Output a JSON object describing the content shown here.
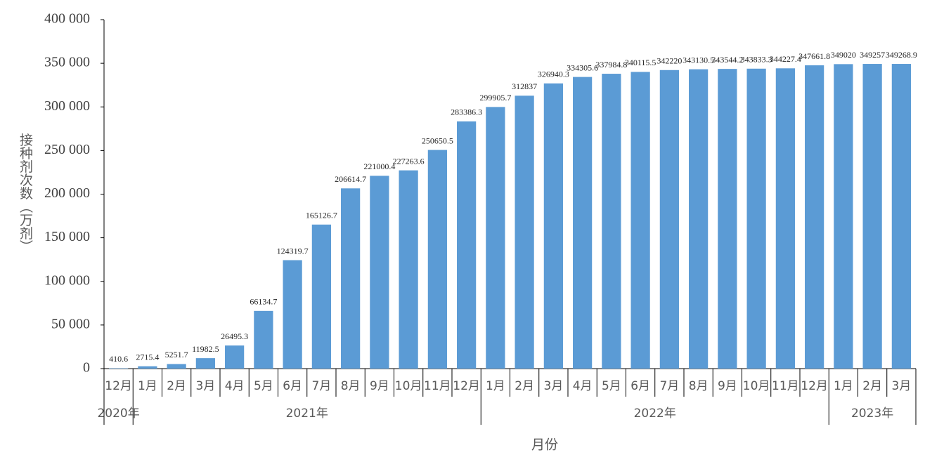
{
  "chart_data": {
    "type": "bar",
    "x_label": "月份",
    "y_label": "接种剂次数（万剂）",
    "category_groups": [
      {
        "label": "2020年",
        "categories": [
          "12月"
        ]
      },
      {
        "label": "2021年",
        "categories": [
          "1月",
          "2月",
          "3月",
          "4月",
          "5月",
          "6月",
          "7月",
          "8月",
          "9月",
          "10月",
          "11月",
          "12月"
        ]
      },
      {
        "label": "2022年",
        "categories": [
          "1月",
          "2月",
          "3月",
          "4月",
          "5月",
          "6月",
          "7月",
          "8月",
          "9月",
          "10月",
          "11月",
          "12月"
        ]
      },
      {
        "label": "2023年",
        "categories": [
          "1月",
          "2月",
          "3月"
        ]
      }
    ],
    "values": [
      410.6,
      2715.4,
      5251.7,
      11982.5,
      26495.3,
      66134.7,
      124319.7,
      165126.7,
      206614.7,
      221000.4,
      227263.6,
      250650.5,
      283386.3,
      299905.7,
      312837,
      326940.3,
      334305.6,
      337984.8,
      340115.5,
      342220,
      343130.5,
      343544.2,
      343833.3,
      344227.4,
      347661.8,
      349020,
      349257,
      349268.9
    ],
    "color": "#5b9bd5",
    "ylim": [
      0,
      400000
    ],
    "yticks": [
      0,
      {
        "value": 50000,
        "label": "50 000"
      },
      {
        "value": 100000,
        "label": "100 000"
      },
      {
        "value": 150000,
        "label": "150 000"
      },
      {
        "value": 200000,
        "label": "200 000"
      },
      {
        "value": 250000,
        "label": "250 000"
      },
      {
        "value": 300000,
        "label": "300 000"
      },
      {
        "value": 350000,
        "label": "350 000"
      },
      {
        "value": 400000,
        "label": "400 000"
      }
    ],
    "grid": false
  }
}
